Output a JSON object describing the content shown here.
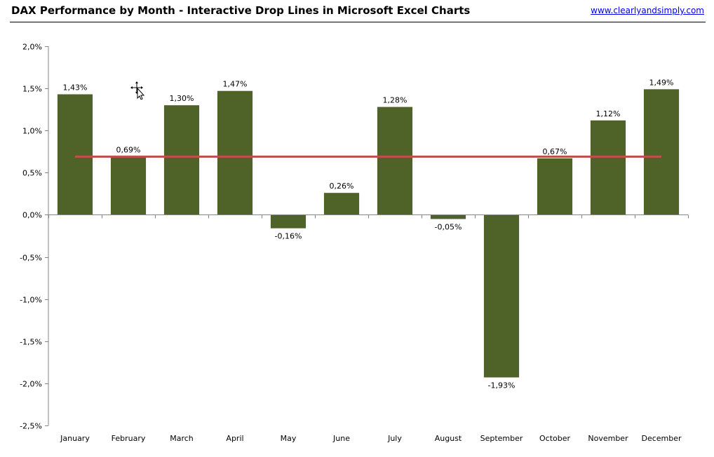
{
  "header": {
    "title": "DAX Performance by Month - Interactive Drop Lines in Microsoft Excel Charts",
    "link": "www.clearlyandsimply.com"
  },
  "chart_data": {
    "type": "bar",
    "title": "",
    "xlabel": "",
    "ylabel": "",
    "categories": [
      "January",
      "February",
      "March",
      "April",
      "May",
      "June",
      "July",
      "August",
      "September",
      "October",
      "November",
      "December"
    ],
    "values": [
      1.43,
      0.69,
      1.3,
      1.47,
      -0.16,
      0.26,
      1.28,
      -0.05,
      -1.93,
      0.67,
      1.12,
      1.49
    ],
    "value_labels": [
      "1,43%",
      "0,69%",
      "1,30%",
      "1,47%",
      "-0,16%",
      "0,26%",
      "1,28%",
      "-0,05%",
      "-1,93%",
      "0,67%",
      "1,12%",
      "1,49%"
    ],
    "ylim": [
      -2.5,
      2.0
    ],
    "yticks": [
      2.0,
      1.5,
      1.0,
      0.5,
      0.0,
      -0.5,
      -1.0,
      -1.5,
      -2.0,
      -2.5
    ],
    "ytick_labels": [
      "2,0%",
      "1,5%",
      "1,0%",
      "0,5%",
      "0,0%",
      "-0,5%",
      "-1,0%",
      "-1,5%",
      "-2,0%",
      "-2,5%"
    ],
    "drop_line": {
      "value": 0.69,
      "from_category": "January",
      "to_category": "December",
      "color": "#c0504d"
    },
    "bar_color": "#4f6228",
    "grid": false,
    "legend": "none"
  },
  "icons": {
    "cursor": "move-cursor-icon"
  }
}
